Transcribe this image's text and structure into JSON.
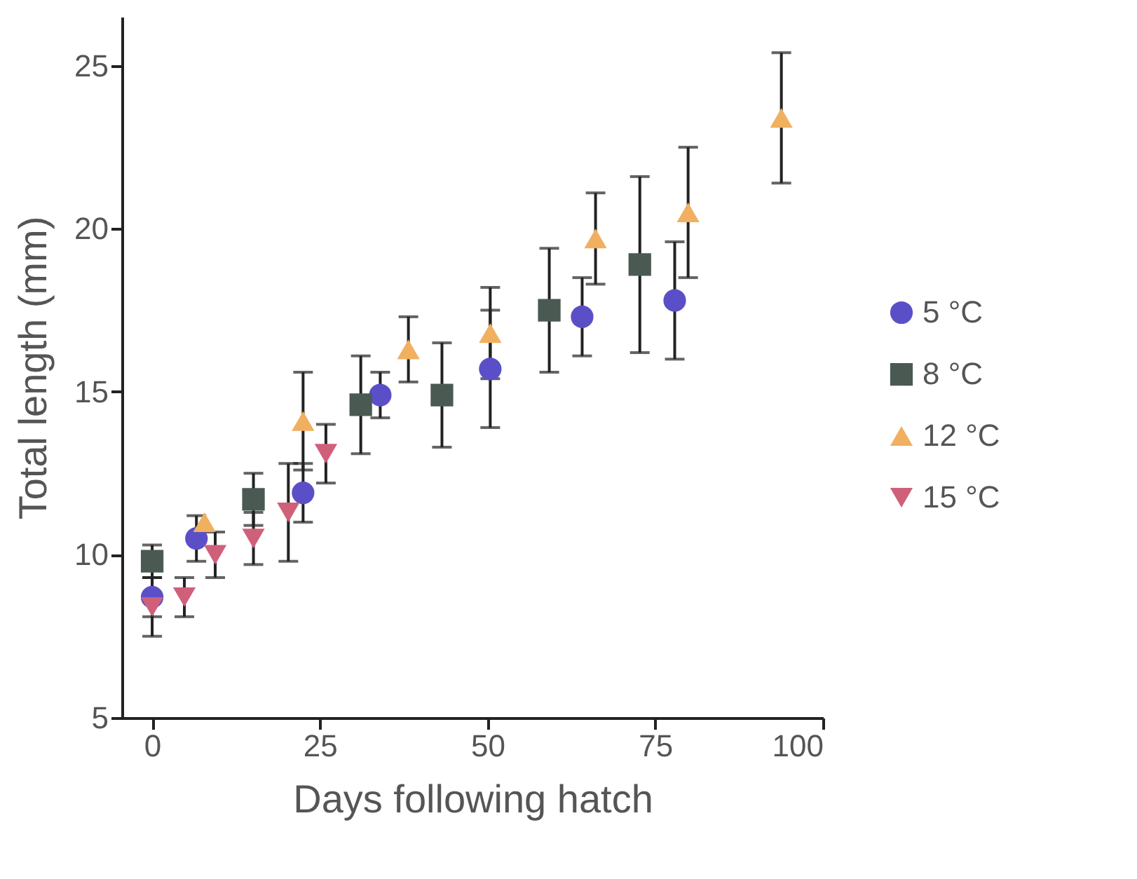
{
  "chart_data": {
    "type": "scatter",
    "xlabel": "Days following hatch",
    "ylabel": "Total length (mm)",
    "xlim": [
      -4.5,
      100
    ],
    "ylim": [
      5,
      26.5
    ],
    "xticks": [
      0,
      25,
      50,
      75,
      100
    ],
    "yticks": [
      5,
      10,
      15,
      20,
      25
    ],
    "grid": false,
    "legend": "right",
    "series": [
      {
        "name": "5 °C",
        "color": "#5b4fc8",
        "marker": "circle",
        "x": [
          0,
          6.6,
          22.5,
          34,
          50.4,
          64.1,
          77.9
        ],
        "values": [
          8.7,
          10.5,
          11.9,
          14.9,
          15.7,
          17.3,
          17.8
        ],
        "errors": [
          0.6,
          0.7,
          0.9,
          0.7,
          1.8,
          1.2,
          1.8
        ]
      },
      {
        "name": "8 °C",
        "color": "#4a5a52",
        "marker": "square",
        "x": [
          0,
          15.1,
          31.1,
          43.2,
          59.2,
          72.7
        ],
        "values": [
          9.8,
          11.7,
          14.6,
          14.9,
          17.5,
          18.9
        ],
        "errors": [
          0.5,
          0.8,
          1.5,
          1.6,
          1.9,
          2.7
        ]
      },
      {
        "name": "12 °C",
        "color": "#f0b060",
        "marker": "triangle",
        "x": [
          7.8,
          22.5,
          38.2,
          50.4,
          66.1,
          79.9,
          93.8
        ],
        "values": [
          11.0,
          14.1,
          16.3,
          16.8,
          19.7,
          20.5,
          23.4
        ],
        "errors": [
          null,
          1.5,
          1.0,
          1.4,
          1.4,
          2.0,
          2.0
        ]
      },
      {
        "name": "15 °C",
        "color": "#d0607a",
        "marker": "triangle-down",
        "x": [
          0,
          4.8,
          9.4,
          15.1,
          20.3,
          25.9
        ],
        "values": [
          8.4,
          8.7,
          10.0,
          10.5,
          11.3,
          13.1
        ],
        "errors": [
          0.9,
          0.6,
          0.7,
          0.8,
          1.5,
          0.9
        ]
      }
    ]
  }
}
